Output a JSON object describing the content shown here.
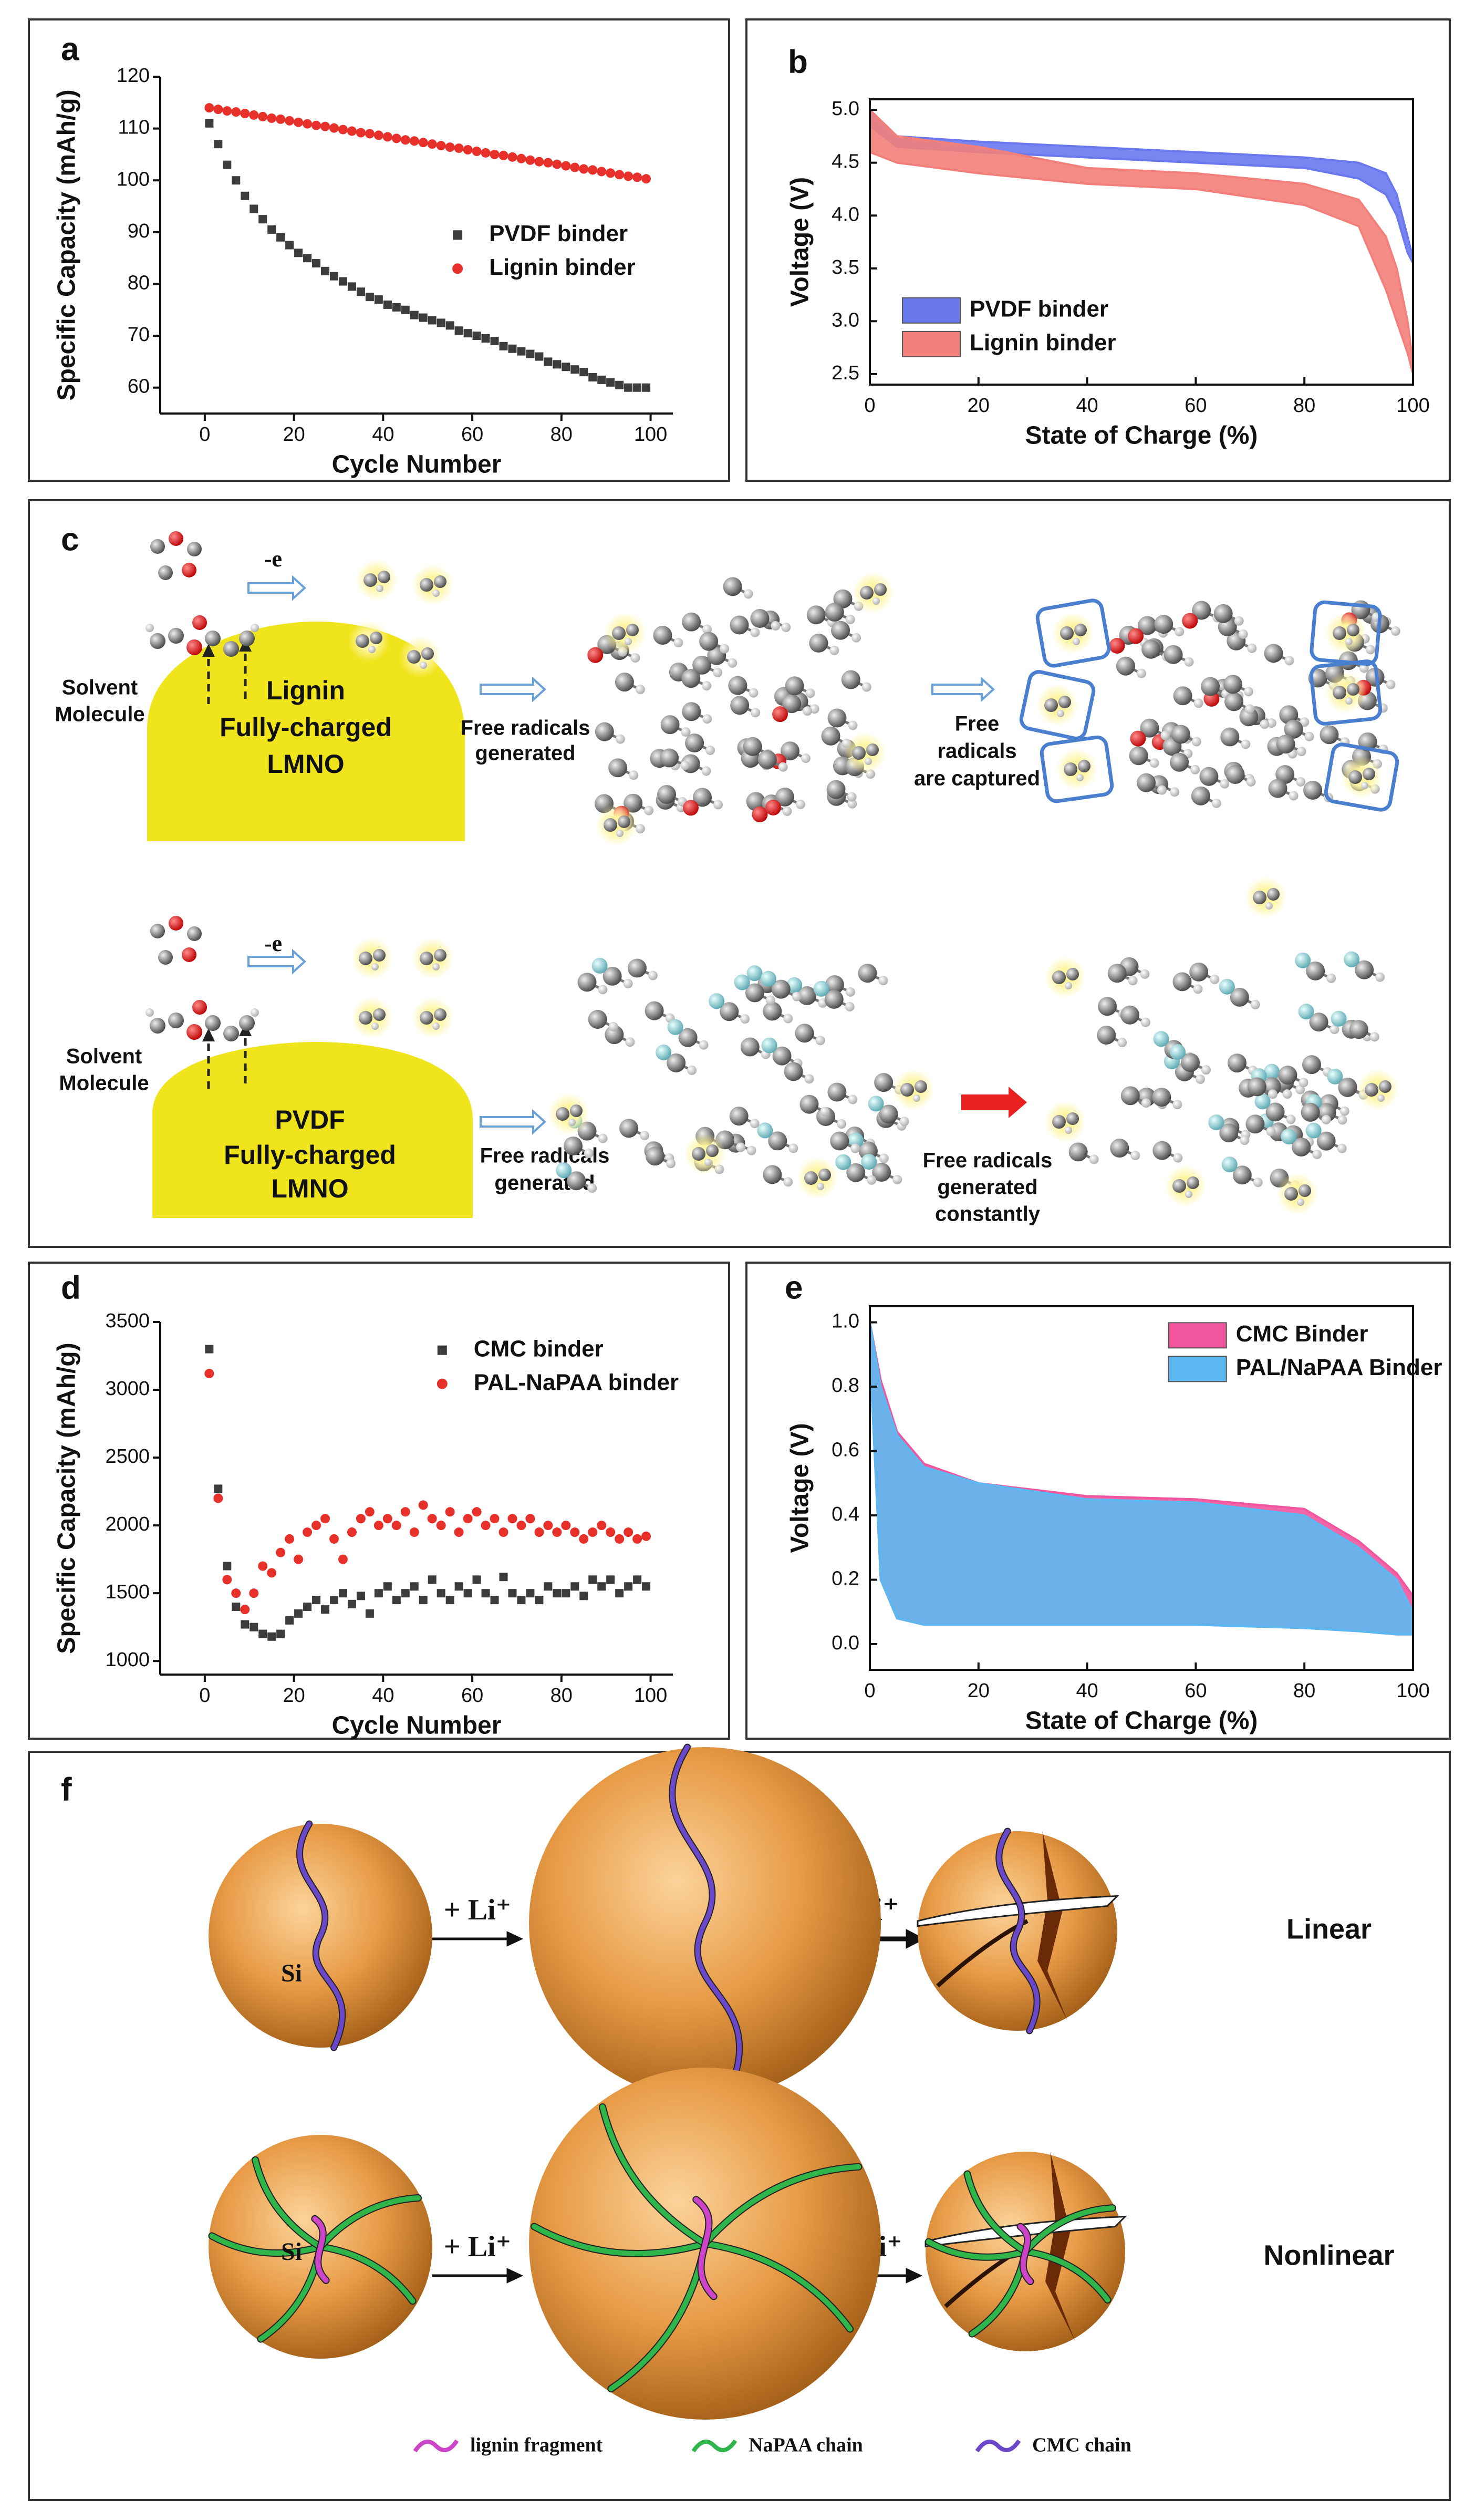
{
  "chart_data": [
    {
      "label": "a",
      "type": "scatter",
      "xlabel": "Cycle Number",
      "ylabel": "Specific Capacity (mAh/g)",
      "x": [
        1,
        3,
        5,
        7,
        9,
        11,
        13,
        15,
        17,
        19,
        21,
        23,
        25,
        27,
        29,
        31,
        33,
        35,
        37,
        39,
        41,
        43,
        45,
        47,
        49,
        51,
        53,
        55,
        57,
        59,
        61,
        63,
        65,
        67,
        69,
        71,
        73,
        75,
        77,
        79,
        81,
        83,
        85,
        87,
        89,
        91,
        93,
        95,
        97,
        99
      ],
      "series": [
        {
          "name": "PVDF binder",
          "color": "#3c3c3c",
          "marker": "square",
          "values": [
            111,
            107,
            103,
            100,
            97,
            94.5,
            92.5,
            90.5,
            89,
            87.5,
            86,
            85,
            84,
            82.5,
            81.5,
            80.5,
            79.5,
            78.5,
            77.5,
            77,
            76,
            75.5,
            75,
            74,
            73.5,
            73,
            72.5,
            72,
            71,
            70.5,
            70,
            69.5,
            69,
            68,
            67.5,
            67,
            66.5,
            66,
            65,
            64.5,
            64,
            63.5,
            63,
            62,
            61.5,
            61,
            60.5,
            60,
            60,
            60
          ]
        },
        {
          "name": "Lignin binder",
          "color": "#e8302a",
          "marker": "circle",
          "values": [
            114,
            113.7,
            113.4,
            113.2,
            112.9,
            112.6,
            112.3,
            112,
            111.8,
            111.5,
            111.2,
            110.9,
            110.6,
            110.4,
            110.1,
            109.8,
            109.5,
            109.2,
            109,
            108.7,
            108.4,
            108.1,
            107.8,
            107.6,
            107.3,
            107,
            106.7,
            106.4,
            106.2,
            105.9,
            105.6,
            105.3,
            105,
            104.8,
            104.5,
            104.2,
            103.9,
            103.6,
            103.4,
            103.1,
            102.8,
            102.5,
            102.2,
            102,
            101.7,
            101.4,
            101.1,
            100.8,
            100.6,
            100.3
          ]
        }
      ],
      "xlim": [
        -10,
        105
      ],
      "xticks": [
        0,
        20,
        40,
        60,
        80,
        100
      ],
      "ylim": [
        55,
        120
      ],
      "yticks": [
        60,
        70,
        80,
        90,
        100,
        110,
        120
      ],
      "legend": "center right",
      "frame": "axes"
    },
    {
      "label": "b",
      "type": "band",
      "xlabel": "State of Charge (%)",
      "ylabel": "Voltage (V)",
      "x": [
        0,
        5,
        20,
        40,
        60,
        80,
        90,
        95,
        97,
        99,
        100
      ],
      "series": [
        {
          "name": "PVDF binder",
          "color": "#6a78ee",
          "upper": [
            5.0,
            4.75,
            4.7,
            4.65,
            4.6,
            4.55,
            4.5,
            4.4,
            4.2,
            3.8,
            3.6
          ],
          "lower": [
            4.85,
            4.65,
            4.6,
            4.55,
            4.5,
            4.45,
            4.35,
            4.2,
            4.0,
            3.65,
            3.55
          ]
        },
        {
          "name": "Lignin binder",
          "color": "#f27f7a",
          "upper": [
            5.0,
            4.75,
            4.65,
            4.45,
            4.4,
            4.3,
            4.15,
            3.8,
            3.5,
            3.0,
            2.6
          ],
          "lower": [
            4.6,
            4.5,
            4.4,
            4.3,
            4.25,
            4.1,
            3.9,
            3.3,
            3.0,
            2.7,
            2.5
          ]
        }
      ],
      "xlim": [
        0,
        100
      ],
      "xticks": [
        0,
        20,
        40,
        60,
        80,
        100
      ],
      "ylim": [
        2.4,
        5.1
      ],
      "yticks": [
        2.5,
        {
          "value": 3,
          "label": "3.0"
        },
        3.5,
        {
          "value": 4,
          "label": "4.0"
        },
        4.5,
        {
          "value": 5,
          "label": "5.0"
        }
      ],
      "legend": "lower left",
      "frame": "box"
    },
    {
      "label": "d",
      "type": "scatter",
      "xlabel": "Cycle Number",
      "ylabel": "Specific Capacity (mAh/g)",
      "x": [
        1,
        3,
        5,
        7,
        9,
        11,
        13,
        15,
        17,
        19,
        21,
        23,
        25,
        27,
        29,
        31,
        33,
        35,
        37,
        39,
        41,
        43,
        45,
        47,
        49,
        51,
        53,
        55,
        57,
        59,
        61,
        63,
        65,
        67,
        69,
        71,
        73,
        75,
        77,
        79,
        81,
        83,
        85,
        87,
        89,
        91,
        93,
        95,
        97,
        99
      ],
      "series": [
        {
          "name": "CMC binder",
          "color": "#3c3c3c",
          "marker": "square",
          "values": [
            3300,
            2270,
            1700,
            1400,
            1270,
            1250,
            1200,
            1180,
            1200,
            1300,
            1350,
            1400,
            1450,
            1380,
            1450,
            1500,
            1420,
            1480,
            1350,
            1500,
            1550,
            1450,
            1500,
            1550,
            1450,
            1600,
            1500,
            1450,
            1550,
            1500,
            1600,
            1500,
            1450,
            1620,
            1500,
            1450,
            1500,
            1450,
            1550,
            1500,
            1500,
            1550,
            1480,
            1600,
            1550,
            1600,
            1500,
            1550,
            1600,
            1550
          ]
        },
        {
          "name": "PAL-NaPAA binder",
          "color": "#e8302a",
          "marker": "circle",
          "values": [
            3120,
            2200,
            1600,
            1500,
            1380,
            1500,
            1700,
            1650,
            1800,
            1900,
            1750,
            1950,
            2000,
            2050,
            1900,
            1750,
            1950,
            2050,
            2100,
            2000,
            2050,
            2000,
            2100,
            1950,
            2150,
            2050,
            2000,
            2100,
            1950,
            2050,
            2100,
            2000,
            2050,
            1950,
            2050,
            2000,
            2050,
            1950,
            2000,
            1950,
            2000,
            1950,
            1900,
            1950,
            2000,
            1950,
            1900,
            1950,
            1900,
            1920
          ]
        }
      ],
      "xlim": [
        -10,
        105
      ],
      "xticks": [
        0,
        20,
        40,
        60,
        80,
        100
      ],
      "ylim": [
        900,
        3500
      ],
      "yticks": [
        1000,
        1500,
        2000,
        2500,
        3000,
        3500
      ],
      "legend": "upper right",
      "frame": "axes"
    },
    {
      "label": "e",
      "type": "band",
      "xlabel": "State of Charge (%)",
      "ylabel": "Voltage (V)",
      "x": [
        0,
        2,
        5,
        10,
        20,
        40,
        60,
        80,
        90,
        97,
        100
      ],
      "series": [
        {
          "name": "CMC Binder",
          "color": "#f0559e",
          "upper": [
            1.0,
            0.82,
            0.66,
            0.56,
            0.5,
            0.46,
            0.45,
            0.42,
            0.32,
            0.22,
            0.15
          ],
          "lower": [
            0.9,
            0.2,
            0.08,
            0.06,
            0.06,
            0.06,
            0.06,
            0.05,
            0.04,
            0.03,
            0.03
          ]
        },
        {
          "name": "PAL/NaPAA Binder",
          "color": "#5cb8f0",
          "upper": [
            1.0,
            0.8,
            0.65,
            0.55,
            0.5,
            0.45,
            0.44,
            0.4,
            0.3,
            0.2,
            0.1
          ],
          "lower": [
            0.9,
            0.2,
            0.08,
            0.06,
            0.06,
            0.06,
            0.06,
            0.05,
            0.04,
            0.03,
            0.03
          ]
        }
      ],
      "xlim": [
        0,
        100
      ],
      "xticks": [
        0,
        20,
        40,
        60,
        80,
        100
      ],
      "ylim": [
        -0.08,
        1.05
      ],
      "yticks": [
        {
          "value": 0,
          "label": "0.0"
        },
        0.2,
        0.4,
        0.6,
        0.8,
        {
          "value": 1,
          "label": "1.0"
        }
      ],
      "legend": "upper right",
      "frame": "box"
    }
  ],
  "diagram_c": {
    "label": "c",
    "top": {
      "solvent": [
        "Solvent",
        "Molecule"
      ],
      "electron": "-e",
      "electrode": [
        "Lignin",
        "Fully-charged",
        "LMNO"
      ],
      "step1": [
        "Free radicals",
        "generated"
      ],
      "binder": "lignin",
      "step2": [
        "Free",
        "radicals",
        "are captured"
      ]
    },
    "bottom": {
      "solvent": [
        "Solvent",
        "Molecule"
      ],
      "electron": "-e",
      "electrode": [
        "PVDF",
        "Fully-charged",
        "LMNO"
      ],
      "step1": [
        "Free radicals",
        "generated"
      ],
      "step2": [
        "Free radicals",
        "generated",
        "constantly"
      ]
    }
  },
  "diagram_f": {
    "label": "f",
    "core": "Si",
    "lithiation": "+ Li⁺",
    "delithiation": "- Li⁺",
    "rows": [
      "Linear",
      "Nonlinear"
    ],
    "legend": [
      "lignin fragment",
      "NaPAA chain",
      "CMC chain"
    ]
  }
}
